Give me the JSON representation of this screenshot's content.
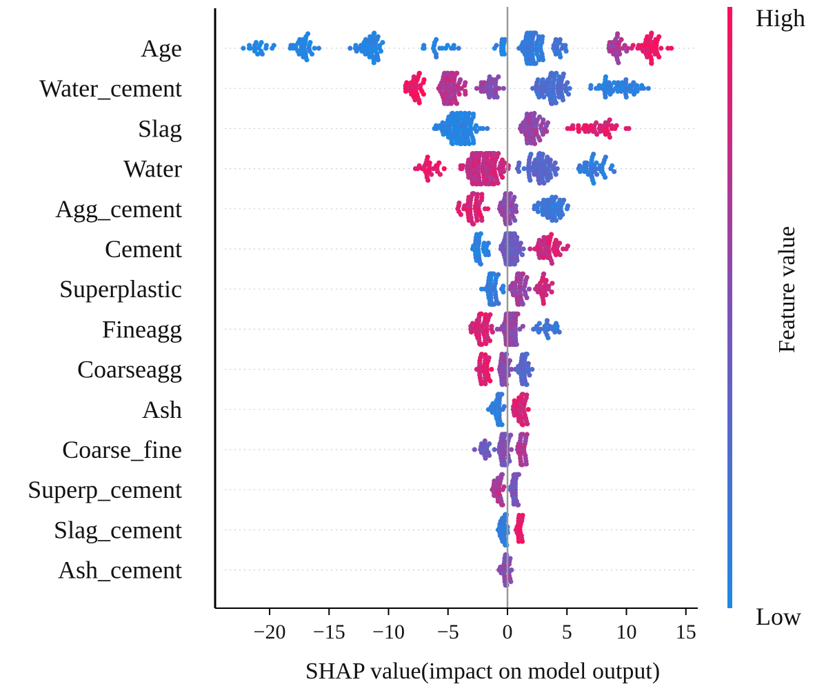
{
  "chart_data": {
    "type": "scatter",
    "subtype": "shap-beeswarm",
    "title": "",
    "xlabel": "SHAP value(impact on model output)",
    "ylabel": "",
    "xlim": [
      -24.5,
      16
    ],
    "x_ticks": [
      -20,
      -15,
      -10,
      -5,
      0,
      5,
      10,
      15
    ],
    "x_tick_labels": [
      "−20",
      "−15",
      "−10",
      "−5",
      "0",
      "5",
      "10",
      "15"
    ],
    "zero_line": 0,
    "colorbar": {
      "title": "Feature value",
      "high_label": "High",
      "low_label": "Low",
      "low_color": "#1E88E5",
      "mid_color": "#7C52B8",
      "high_color": "#FF0D57"
    },
    "features": [
      {
        "name": "Age",
        "min": -23,
        "max": 14,
        "groups": [
          {
            "range": [
              -23,
              -19
            ],
            "v": 0.0,
            "n": 18
          },
          {
            "range": [
              -19,
              -15.5
            ],
            "v": 0.02,
            "n": 34
          },
          {
            "range": [
              -13.5,
              -9.5
            ],
            "v": 0.03,
            "n": 46
          },
          {
            "range": [
              -8,
              -3.5
            ],
            "v": 0.05,
            "n": 18
          },
          {
            "range": [
              -1.5,
              0.5
            ],
            "v": 0.08,
            "n": 14
          },
          {
            "range": [
              0.5,
              3.5
            ],
            "v": 0.12,
            "n": 80
          },
          {
            "range": [
              3.5,
              5.5
            ],
            "v": 0.15,
            "n": 18
          },
          {
            "range": [
              7.8,
              10.5
            ],
            "v": 0.65,
            "n": 30
          },
          {
            "range": [
              10,
              14
            ],
            "v": 0.92,
            "n": 45
          }
        ]
      },
      {
        "name": "Water_cement",
        "min": -9.5,
        "max": 12.7,
        "groups": [
          {
            "range": [
              -9.5,
              -6.5
            ],
            "v": 0.95,
            "n": 36
          },
          {
            "range": [
              -6.5,
              -3
            ],
            "v": 0.72,
            "n": 72
          },
          {
            "range": [
              -3,
              0
            ],
            "v": 0.55,
            "n": 34
          },
          {
            "range": [
              1.5,
              6
            ],
            "v": 0.25,
            "n": 72
          },
          {
            "range": [
              6,
              12.7
            ],
            "v": 0.07,
            "n": 52
          }
        ]
      },
      {
        "name": "Slag",
        "min": -6.8,
        "max": 11,
        "groups": [
          {
            "range": [
              -6.8,
              -1
            ],
            "v": 0.02,
            "n": 110
          },
          {
            "range": [
              0.5,
              4
            ],
            "v": 0.6,
            "n": 58
          },
          {
            "range": [
              4,
              11
            ],
            "v": 0.88,
            "n": 42
          }
        ]
      },
      {
        "name": "Water",
        "min": -8.5,
        "max": 10,
        "groups": [
          {
            "range": [
              -8.5,
              -4.5
            ],
            "v": 0.92,
            "n": 26
          },
          {
            "range": [
              -4.5,
              0.5
            ],
            "v": 0.78,
            "n": 150
          },
          {
            "range": [
              0.5,
              5
            ],
            "v": 0.3,
            "n": 66
          },
          {
            "range": [
              5,
              10
            ],
            "v": 0.08,
            "n": 42
          }
        ]
      },
      {
        "name": "Agg_cement",
        "min": -4.8,
        "max": 6.2,
        "groups": [
          {
            "range": [
              -4.8,
              -1
            ],
            "v": 0.85,
            "n": 58
          },
          {
            "range": [
              -1,
              1
            ],
            "v": 0.55,
            "n": 44
          },
          {
            "range": [
              1,
              6.2
            ],
            "v": 0.15,
            "n": 52
          }
        ]
      },
      {
        "name": "Cement",
        "min": -3.5,
        "max": 5.3,
        "groups": [
          {
            "range": [
              -3.5,
              -1
            ],
            "v": 0.05,
            "n": 36
          },
          {
            "range": [
              -1,
              1.5
            ],
            "v": 0.4,
            "n": 70
          },
          {
            "range": [
              1.5,
              5.3
            ],
            "v": 0.82,
            "n": 50
          }
        ]
      },
      {
        "name": "Superplastic",
        "min": -2.5,
        "max": 4,
        "groups": [
          {
            "range": [
              -2.5,
              0
            ],
            "v": 0.1,
            "n": 56
          },
          {
            "range": [
              0,
              2
            ],
            "v": 0.62,
            "n": 50
          },
          {
            "range": [
              2,
              4
            ],
            "v": 0.8,
            "n": 26
          }
        ]
      },
      {
        "name": "Fineagg",
        "min": -3.5,
        "max": 5.3,
        "groups": [
          {
            "range": [
              -3.5,
              -1
            ],
            "v": 0.85,
            "n": 52
          },
          {
            "range": [
              -1,
              1.5
            ],
            "v": 0.6,
            "n": 88
          },
          {
            "range": [
              1.5,
              5.3
            ],
            "v": 0.15,
            "n": 22
          }
        ]
      },
      {
        "name": "Coarseagg",
        "min": -3,
        "max": 2.2,
        "groups": [
          {
            "range": [
              -3,
              -1
            ],
            "v": 0.88,
            "n": 34
          },
          {
            "range": [
              -1,
              0.5
            ],
            "v": 0.55,
            "n": 34
          },
          {
            "range": [
              0.5,
              2.2
            ],
            "v": 0.3,
            "n": 38
          }
        ]
      },
      {
        "name": "Ash",
        "min": -1.8,
        "max": 2.2,
        "groups": [
          {
            "range": [
              -1.8,
              0
            ],
            "v": 0.1,
            "n": 38
          },
          {
            "range": [
              0,
              2.2
            ],
            "v": 0.85,
            "n": 44
          }
        ]
      },
      {
        "name": "Coarse_fine",
        "min": -3,
        "max": 2,
        "groups": [
          {
            "range": [
              -3,
              -1
            ],
            "v": 0.4,
            "n": 18
          },
          {
            "range": [
              -1,
              0.5
            ],
            "v": 0.5,
            "n": 60
          },
          {
            "range": [
              0.5,
              2
            ],
            "v": 0.65,
            "n": 34
          }
        ]
      },
      {
        "name": "Superp_cement",
        "min": -1.5,
        "max": 1.2,
        "groups": [
          {
            "range": [
              -1.5,
              0
            ],
            "v": 0.7,
            "n": 32
          },
          {
            "range": [
              0,
              1.2
            ],
            "v": 0.45,
            "n": 32
          }
        ]
      },
      {
        "name": "Slag_cement",
        "min": -1,
        "max": 1.8,
        "groups": [
          {
            "range": [
              -1,
              0.3
            ],
            "v": 0.1,
            "n": 36
          },
          {
            "range": [
              0.3,
              1.8
            ],
            "v": 0.9,
            "n": 20
          }
        ]
      },
      {
        "name": "Ash_cement",
        "min": -0.8,
        "max": 0.6,
        "groups": [
          {
            "range": [
              -0.8,
              0.6
            ],
            "v": 0.55,
            "n": 30
          }
        ]
      }
    ]
  }
}
